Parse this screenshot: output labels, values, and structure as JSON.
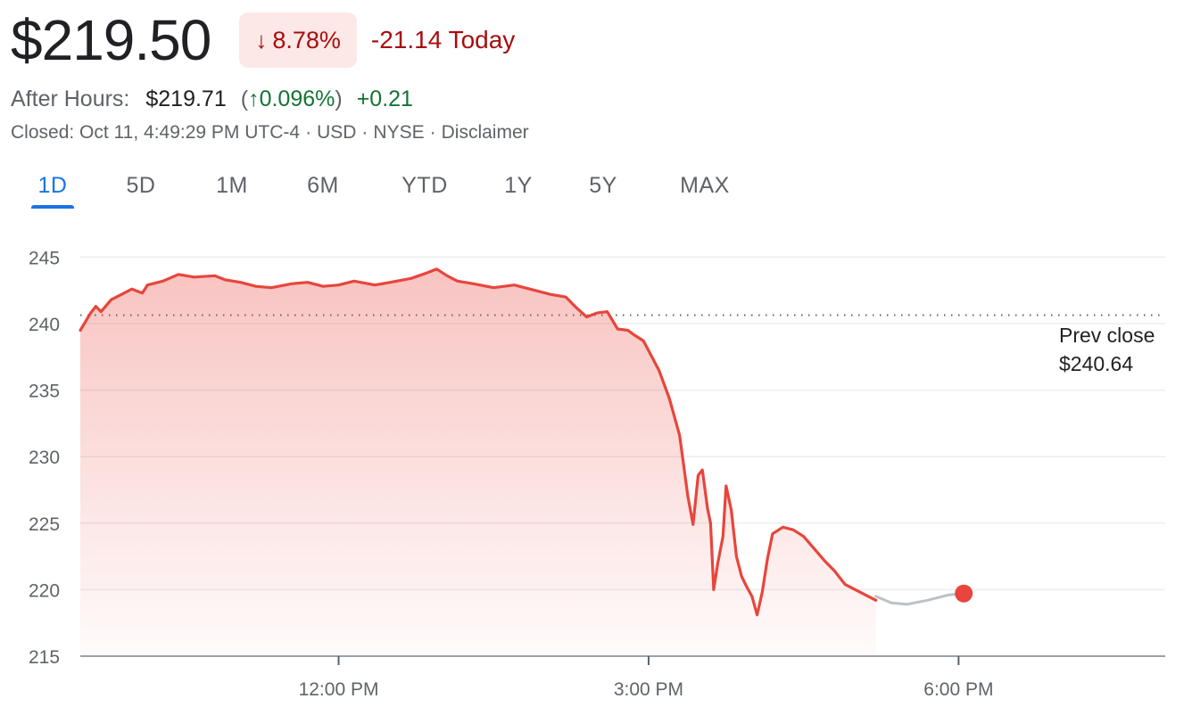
{
  "quote": {
    "price": "$219.50",
    "change_pct": "8.78%",
    "change_abs": "-21.14 Today",
    "after_hours_label": "After Hours:",
    "after_hours_price": "$219.71",
    "after_hours_pct": "0.096%",
    "after_hours_change": "+0.21",
    "closed_info": "Closed: Oct 11, 4:49:29 PM UTC-4",
    "currency": "USD",
    "exchange": "NYSE",
    "disclaimer": "Disclaimer"
  },
  "tabs": [
    {
      "label": "1D",
      "active": true
    },
    {
      "label": "5D",
      "active": false
    },
    {
      "label": "1M",
      "active": false
    },
    {
      "label": "6M",
      "active": false
    },
    {
      "label": "YTD",
      "active": false
    },
    {
      "label": "1Y",
      "active": false
    },
    {
      "label": "5Y",
      "active": false
    },
    {
      "label": "MAX",
      "active": false
    }
  ],
  "colors": {
    "down": "#e8453c",
    "down_text": "#a50e0e",
    "down_bg": "#fce8e6",
    "up_text": "#137333",
    "accent": "#1a73e8",
    "after_hours_line": "#bdc1c6"
  },
  "icons": {
    "down_arrow": "arrow-down-icon",
    "up_arrow": "arrow-up-icon"
  },
  "chart_data": {
    "type": "line",
    "ylim": [
      215,
      246.5
    ],
    "y_ticks": [
      245,
      240,
      235,
      230,
      225,
      220,
      215
    ],
    "x_range_hours": [
      9.5,
      20.0
    ],
    "x_ticks": [
      {
        "t": 12,
        "label": "12:00 PM"
      },
      {
        "t": 15,
        "label": "3:00 PM"
      },
      {
        "t": 18,
        "label": "6:00 PM"
      }
    ],
    "prev_close": {
      "value": 240.64,
      "label_line1": "Prev close",
      "label_line2": "$240.64"
    },
    "grid": true,
    "series": [
      {
        "type": "regular",
        "points": [
          [
            9.5,
            239.5
          ],
          [
            9.6,
            240.8
          ],
          [
            9.65,
            241.3
          ],
          [
            9.7,
            240.9
          ],
          [
            9.8,
            241.8
          ],
          [
            9.9,
            242.2
          ],
          [
            10.0,
            242.6
          ],
          [
            10.1,
            242.3
          ],
          [
            10.15,
            242.9
          ],
          [
            10.3,
            243.2
          ],
          [
            10.45,
            243.7
          ],
          [
            10.6,
            243.5
          ],
          [
            10.8,
            243.6
          ],
          [
            10.9,
            243.3
          ],
          [
            11.05,
            243.1
          ],
          [
            11.2,
            242.8
          ],
          [
            11.35,
            242.7
          ],
          [
            11.55,
            243.0
          ],
          [
            11.7,
            243.1
          ],
          [
            11.85,
            242.8
          ],
          [
            12.0,
            242.9
          ],
          [
            12.15,
            243.2
          ],
          [
            12.35,
            242.9
          ],
          [
            12.5,
            243.1
          ],
          [
            12.7,
            243.4
          ],
          [
            12.85,
            243.8
          ],
          [
            12.95,
            244.1
          ],
          [
            13.05,
            243.6
          ],
          [
            13.15,
            243.2
          ],
          [
            13.3,
            243.0
          ],
          [
            13.5,
            242.7
          ],
          [
            13.7,
            242.9
          ],
          [
            13.9,
            242.5
          ],
          [
            14.05,
            242.2
          ],
          [
            14.2,
            242.0
          ],
          [
            14.3,
            241.2
          ],
          [
            14.4,
            240.5
          ],
          [
            14.5,
            240.8
          ],
          [
            14.6,
            240.9
          ],
          [
            14.7,
            239.6
          ],
          [
            14.8,
            239.5
          ],
          [
            14.85,
            239.2
          ],
          [
            14.95,
            238.7
          ],
          [
            15.1,
            236.5
          ],
          [
            15.2,
            234.4
          ],
          [
            15.3,
            231.6
          ],
          [
            15.38,
            227.0
          ],
          [
            15.43,
            224.9
          ],
          [
            15.48,
            228.6
          ],
          [
            15.52,
            229.0
          ],
          [
            15.57,
            226.1
          ],
          [
            15.6,
            225.0
          ],
          [
            15.63,
            220.0
          ],
          [
            15.67,
            222.0
          ],
          [
            15.72,
            224.0
          ],
          [
            15.75,
            227.8
          ],
          [
            15.8,
            226.0
          ],
          [
            15.85,
            222.5
          ],
          [
            15.9,
            221.0
          ],
          [
            15.95,
            220.2
          ],
          [
            16.0,
            219.5
          ],
          [
            16.05,
            218.1
          ],
          [
            16.1,
            219.8
          ],
          [
            16.15,
            222.3
          ],
          [
            16.2,
            224.2
          ],
          [
            16.3,
            224.7
          ],
          [
            16.4,
            224.5
          ],
          [
            16.5,
            224.0
          ],
          [
            16.6,
            223.1
          ],
          [
            16.7,
            222.2
          ],
          [
            16.8,
            221.4
          ],
          [
            16.9,
            220.4
          ],
          [
            17.0,
            220.0
          ],
          [
            17.1,
            219.6
          ],
          [
            17.2,
            219.2
          ]
        ]
      },
      {
        "type": "after_hours",
        "points": [
          [
            17.2,
            219.5
          ],
          [
            17.35,
            219.0
          ],
          [
            17.5,
            218.9
          ],
          [
            17.7,
            219.2
          ],
          [
            17.9,
            219.6
          ],
          [
            18.05,
            219.71
          ]
        ]
      }
    ]
  }
}
